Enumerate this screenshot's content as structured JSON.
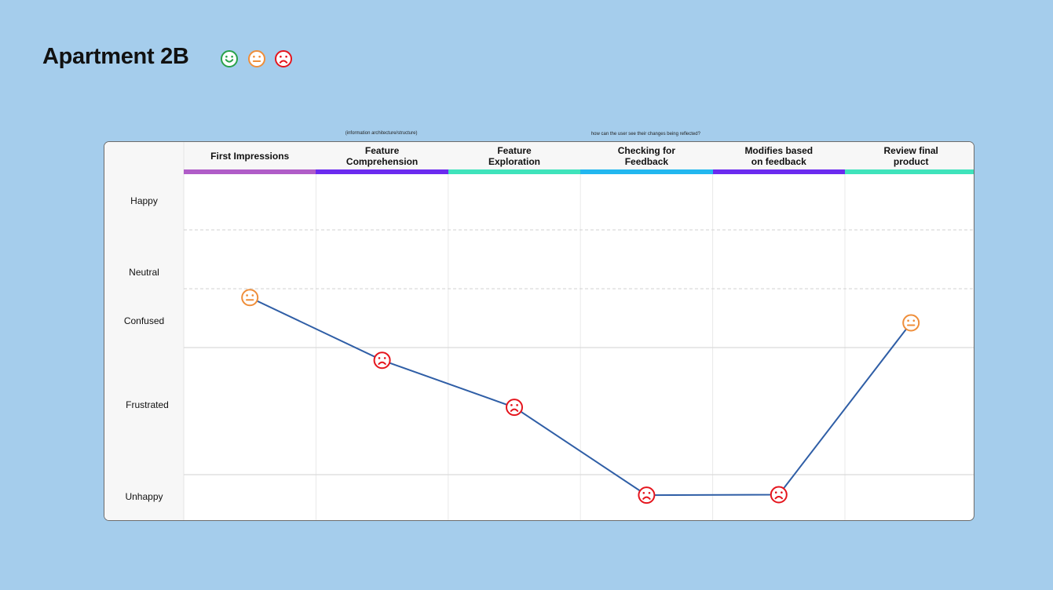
{
  "page": {
    "title": "Apartment 2B",
    "legend_icons": [
      {
        "icon": "smile-icon",
        "color": "#2aa24a"
      },
      {
        "icon": "neutral-face-icon",
        "color": "#ef8e3a"
      },
      {
        "icon": "frown-icon",
        "color": "#e5151d"
      }
    ],
    "notes": [
      {
        "text": "(information architecture/structure)",
        "column": 1
      },
      {
        "text": "how can the user see their changes being reflected?",
        "column": 3
      }
    ]
  },
  "chart_data": {
    "type": "line",
    "title": "",
    "columns": [
      {
        "label": "First Impressions",
        "color": "#b05dc8"
      },
      {
        "label": "Feature\nComprehension",
        "color": "#6b2bef"
      },
      {
        "label": "Feature\nExploration",
        "color": "#3fe3bb"
      },
      {
        "label": "Checking for\nFeedback",
        "color": "#22b7ef"
      },
      {
        "label": "Modifies based\non feedback",
        "color": "#6b2bef"
      },
      {
        "label": "Review final\nproduct",
        "color": "#3fe3bb"
      }
    ],
    "rows": [
      "Happy",
      "Neutral",
      "Confused",
      "Frustrated",
      "Unhappy"
    ],
    "series": [
      {
        "color": "#2f5ea6",
        "points": [
          {
            "column": 0,
            "level": "Confused",
            "position": 0.15,
            "face": "neutral-face-icon",
            "face_color": "#ef8e3a"
          },
          {
            "column": 1,
            "level": "Frustrated",
            "position": 0.1,
            "face": "frown-icon",
            "face_color": "#e5151d"
          },
          {
            "column": 2,
            "level": "Frustrated",
            "position": 0.47,
            "face": "frown-icon",
            "face_color": "#e5151d"
          },
          {
            "column": 3,
            "level": "Unhappy",
            "position": 0.45,
            "face": "frown-icon",
            "face_color": "#e5151d"
          },
          {
            "column": 4,
            "level": "Unhappy",
            "position": 0.44,
            "face": "frown-icon",
            "face_color": "#e5151d"
          },
          {
            "column": 5,
            "level": "Confused",
            "position": 0.58,
            "face": "neutral-face-icon",
            "face_color": "#ef8e3a"
          }
        ]
      }
    ]
  }
}
